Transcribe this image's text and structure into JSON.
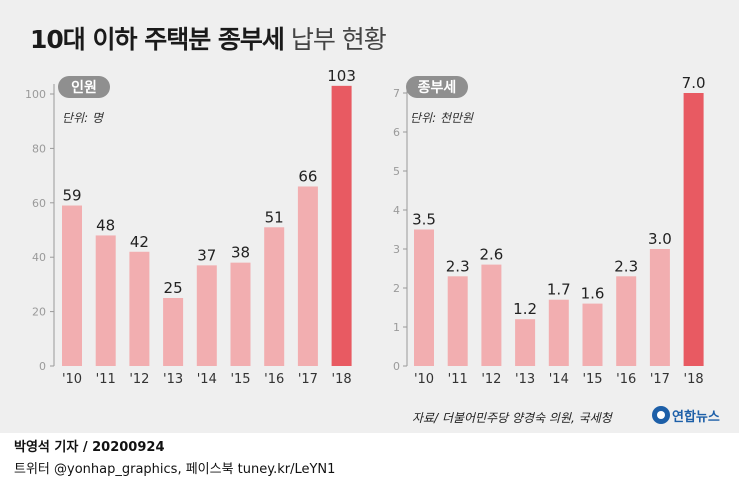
{
  "title": {
    "bold": "10대 이하 주택분 종부세",
    "light": "납부 현황"
  },
  "chart_data": [
    {
      "type": "bar",
      "badge": "인원",
      "unit_label": "단위: 명",
      "categories": [
        "'10",
        "'11",
        "'12",
        "'13",
        "'14",
        "'15",
        "'16",
        "'17",
        "'18"
      ],
      "values": [
        59,
        48,
        42,
        25,
        37,
        38,
        51,
        66,
        103
      ],
      "labels": [
        "59",
        "48",
        "42",
        "25",
        "37",
        "38",
        "51",
        "66",
        "103"
      ],
      "ylim": [
        0,
        100
      ],
      "yticks": [
        0,
        20,
        40,
        60,
        80,
        100
      ],
      "highlight_index": 8
    },
    {
      "type": "bar",
      "badge": "종부세",
      "unit_label": "단위: 천만원",
      "categories": [
        "'10",
        "'11",
        "'12",
        "'13",
        "'14",
        "'15",
        "'16",
        "'17",
        "'18"
      ],
      "values": [
        3.5,
        2.3,
        2.6,
        1.2,
        1.7,
        1.6,
        2.3,
        3.0,
        7.0
      ],
      "labels": [
        "3.5",
        "2.3",
        "2.6",
        "1.2",
        "1.7",
        "1.6",
        "2.3",
        "3.0",
        "7.0"
      ],
      "ylim": [
        0,
        7
      ],
      "yticks": [
        0,
        1,
        2,
        3,
        4,
        5,
        6,
        7
      ],
      "highlight_index": 8
    }
  ],
  "colors": {
    "bar": "#f2aeb0",
    "highlight": "#e85a62",
    "badge": "#8f8f8f"
  },
  "source": "자료/ 더불어민주당 양경숙 의원, 국세청",
  "logo": {
    "text": "연합뉴스",
    "icon": "yonhap-logo-icon"
  },
  "footer": {
    "line1": "박영석 기자 /  20200924",
    "line2": "트위터 @yonhap_graphics, 페이스북 tuney.kr/LeYN1"
  }
}
